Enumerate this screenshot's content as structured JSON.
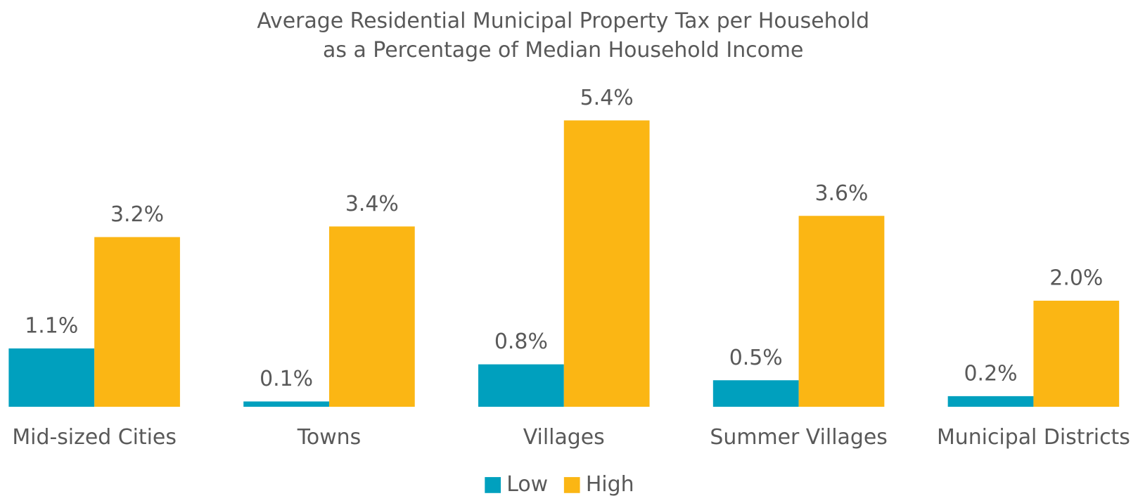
{
  "chart_data": {
    "type": "bar",
    "title": [
      "Average Residential Municipal Property Tax per Household",
      "as a Percentage of Median Household Income"
    ],
    "categories": [
      "Mid-sized Cities",
      "Towns",
      "Villages",
      "Summer Villages",
      "Municipal Districts"
    ],
    "series": [
      {
        "name": "Low",
        "color": "#00a0be",
        "values": [
          1.1,
          0.1,
          0.8,
          0.5,
          0.2
        ],
        "value_labels": [
          "1.1%",
          "0.1%",
          "0.8%",
          "0.5%",
          "0.2%"
        ]
      },
      {
        "name": "High",
        "color": "#fbb614",
        "values": [
          3.2,
          3.4,
          5.4,
          3.6,
          2.0
        ],
        "value_labels": [
          "3.2%",
          "3.4%",
          "5.4%",
          "3.6%",
          "2.0%"
        ]
      }
    ],
    "legend": "bottom"
  }
}
